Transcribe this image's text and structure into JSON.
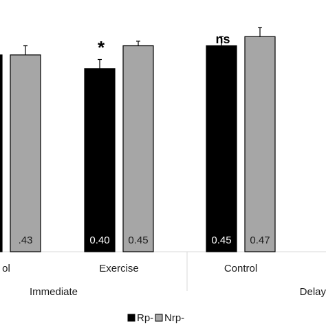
{
  "chart_data": {
    "type": "bar",
    "groups": [
      {
        "name": "Immediate",
        "categories": [
          "Control",
          "Exercise"
        ]
      },
      {
        "name": "Delayed",
        "categories": [
          "Control",
          "Exercise"
        ]
      }
    ],
    "categories": [
      "Control",
      "Exercise",
      "Control",
      "Exercise"
    ],
    "visible_category_labels": [
      "ol",
      "Exercise",
      "Control",
      ""
    ],
    "visible_group_labels": [
      "Immediate",
      "Delay"
    ],
    "series": [
      {
        "name": "Rp-",
        "color": "#000000",
        "values": [
          0.43,
          0.4,
          0.45,
          null
        ],
        "value_labels": [
          ".43",
          "0.40",
          "0.45",
          ""
        ],
        "errors": [
          0.02,
          0.02,
          0.02,
          null
        ]
      },
      {
        "name": "Nrp-",
        "color": "#a6a6a6",
        "values": [
          0.43,
          0.45,
          0.47,
          null
        ],
        "value_labels": [
          ".43",
          "0.45",
          "0.47",
          ""
        ],
        "errors": [
          0.02,
          0.01,
          0.02,
          null
        ]
      }
    ],
    "annotations": [
      {
        "category_index": 1,
        "text": "*"
      },
      {
        "category_index": 2,
        "text": "ns"
      }
    ],
    "legend": {
      "position": "bottom",
      "entries": [
        "Rp-",
        "Nrp-"
      ]
    },
    "ylim": [
      0,
      0.55
    ],
    "grid": false
  }
}
